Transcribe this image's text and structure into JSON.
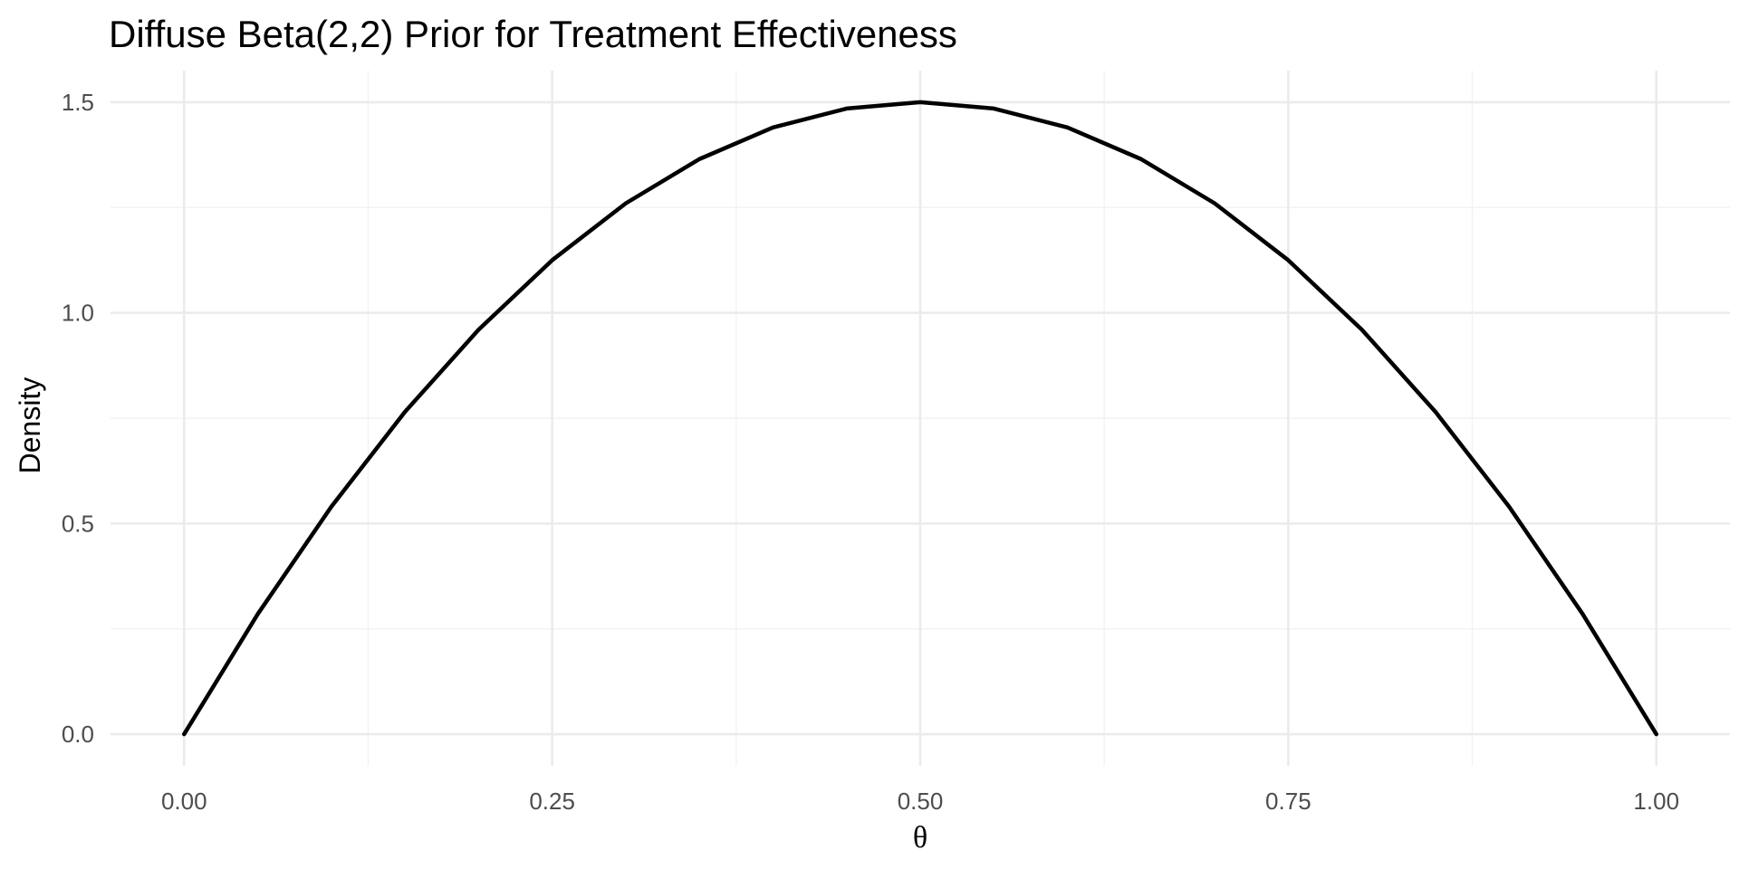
{
  "chart_data": {
    "type": "line",
    "title": "Diffuse Beta(2,2) Prior for Treatment Effectiveness",
    "xlabel": "θ",
    "ylabel": "Density",
    "xlim": [
      -0.05,
      1.05
    ],
    "ylim": [
      -0.075,
      1.575
    ],
    "x_ticks": [
      0.0,
      0.25,
      0.5,
      0.75,
      1.0
    ],
    "x_tick_labels": [
      "0.00",
      "0.25",
      "0.50",
      "0.75",
      "1.00"
    ],
    "y_ticks": [
      0.0,
      0.5,
      1.0,
      1.5
    ],
    "y_tick_labels": [
      "0.0",
      "0.5",
      "1.0",
      "1.5"
    ],
    "grid": true,
    "legend": "none",
    "line_color": "#000000",
    "series": [
      {
        "x": [
          0.0,
          0.05,
          0.1,
          0.15,
          0.2,
          0.25,
          0.3,
          0.35,
          0.4,
          0.45,
          0.5,
          0.55,
          0.6,
          0.65,
          0.7,
          0.75,
          0.8,
          0.85,
          0.9,
          0.95,
          1.0
        ],
        "y": [
          0.0,
          0.285,
          0.54,
          0.765,
          0.96,
          1.125,
          1.26,
          1.365,
          1.44,
          1.485,
          1.5,
          1.485,
          1.44,
          1.365,
          1.26,
          1.125,
          0.96,
          0.765,
          0.54,
          0.285,
          0.0
        ]
      }
    ]
  }
}
